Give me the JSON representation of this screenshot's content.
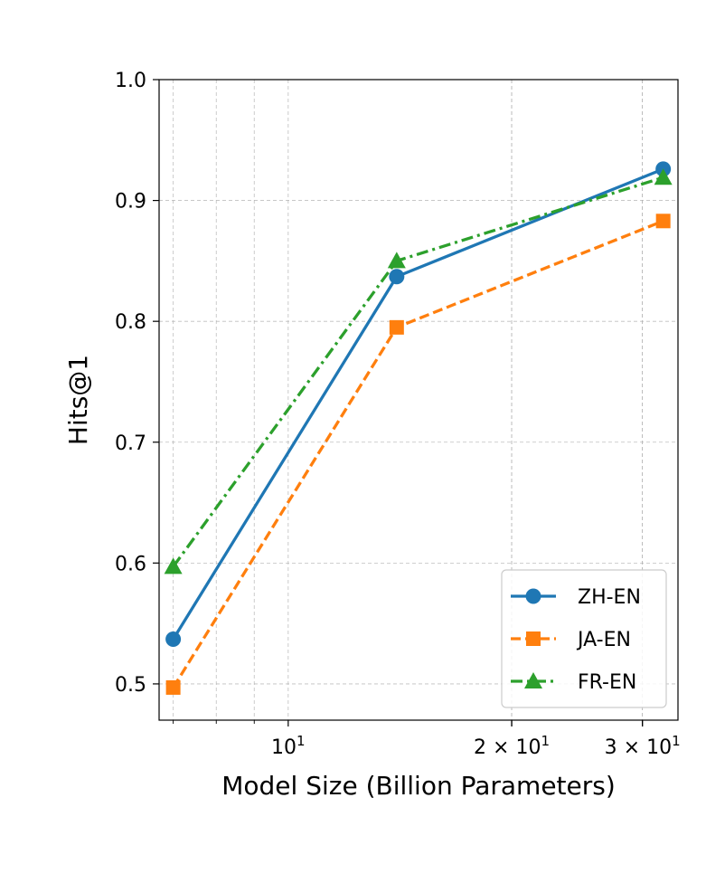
{
  "chart_data": {
    "type": "line",
    "title": "",
    "xlabel": "Model Size (Billion Parameters)",
    "ylabel": "Hits@1",
    "xscale": "log",
    "xlim": [
      6.7,
      33.5
    ],
    "ylim": [
      0.47,
      1.0
    ],
    "yticks": [
      0.5,
      0.6,
      0.7,
      0.8,
      0.9,
      1.0
    ],
    "ytick_labels": [
      "0.5",
      "0.6",
      "0.7",
      "0.8",
      "0.9",
      "1.0"
    ],
    "xticks_major": [
      {
        "value": 10,
        "base": "10",
        "exp": "1"
      },
      {
        "value": 20,
        "base": "2 × 10",
        "exp": "1"
      },
      {
        "value": 30,
        "base": "3 × 10",
        "exp": "1"
      }
    ],
    "xticks_minor": [
      7,
      8,
      9,
      20,
      30
    ],
    "grid": true,
    "legend_position": "bottom-right",
    "x": [
      7,
      14,
      32
    ],
    "series": [
      {
        "name": "ZH-EN",
        "values": [
          0.537,
          0.837,
          0.926
        ],
        "color": "#1f77b4",
        "marker": "circle",
        "linestyle": "solid"
      },
      {
        "name": "JA-EN",
        "values": [
          0.497,
          0.795,
          0.883
        ],
        "color": "#ff7f0e",
        "marker": "square",
        "linestyle": "dashed"
      },
      {
        "name": "FR-EN",
        "values": [
          0.597,
          0.85,
          0.919
        ],
        "color": "#2ca02c",
        "marker": "triangle",
        "linestyle": "dashdot"
      }
    ]
  }
}
